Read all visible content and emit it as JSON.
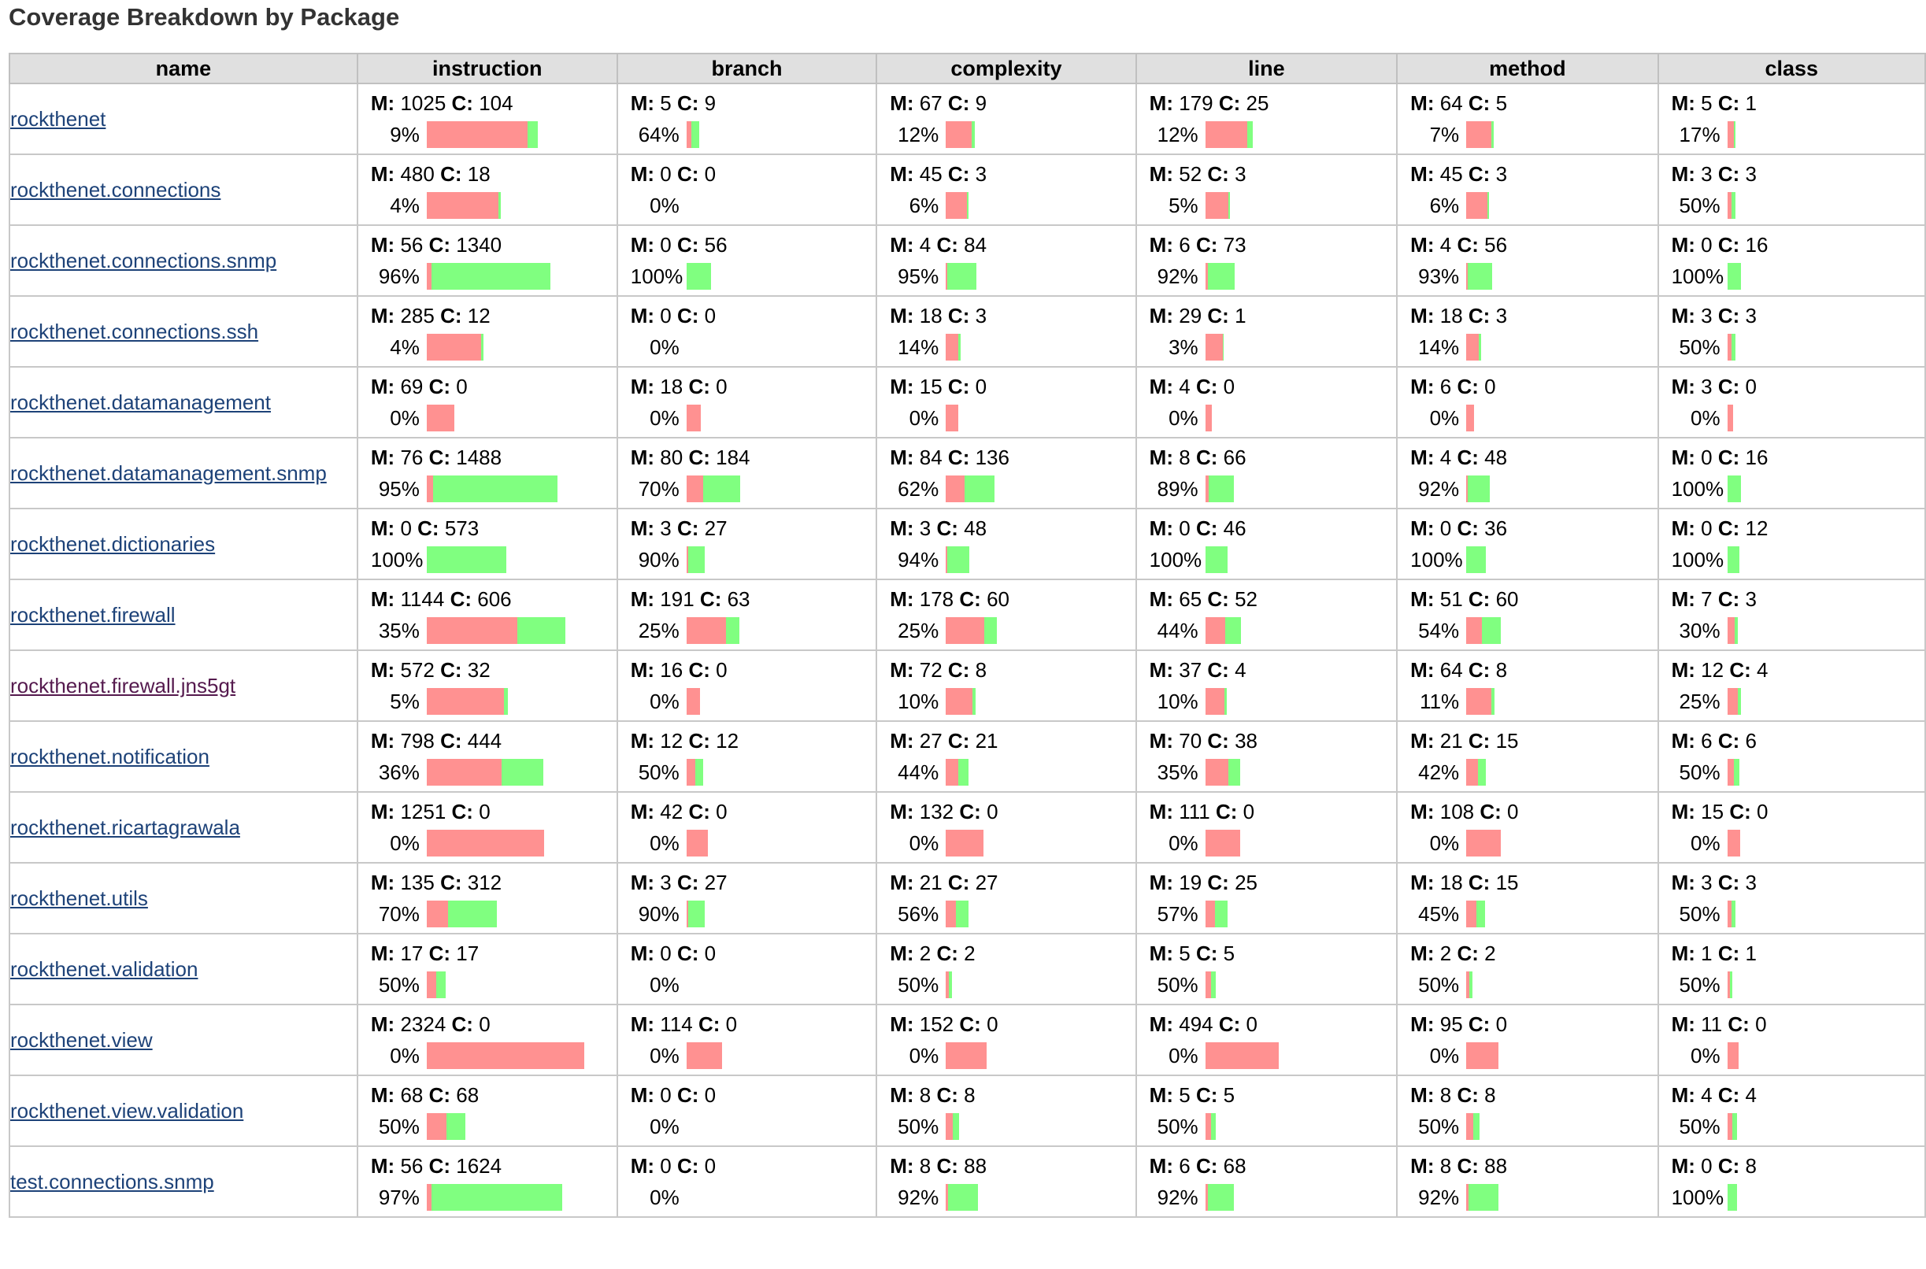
{
  "page": {
    "title": "Coverage Breakdown by Package"
  },
  "labels": {
    "missed": "M:",
    "covered": "C:"
  },
  "colors": {
    "missed_bar": "#ff9191",
    "covered_bar": "#80ff80",
    "link": "#1d4278",
    "visited_link": "#551a4e",
    "header_bg": "#e0e0e0"
  },
  "columns": [
    "name",
    "instruction",
    "branch",
    "complexity",
    "line",
    "method",
    "class"
  ],
  "rows": [
    {
      "name": "rockthenet",
      "cells": [
        {
          "m": "1025",
          "c": "104",
          "pct": "9%"
        },
        {
          "m": "5",
          "c": "9",
          "pct": "64%"
        },
        {
          "m": "67",
          "c": "9",
          "pct": "12%"
        },
        {
          "m": "179",
          "c": "25",
          "pct": "12%"
        },
        {
          "m": "64",
          "c": "5",
          "pct": "7%"
        },
        {
          "m": "5",
          "c": "1",
          "pct": "17%"
        }
      ]
    },
    {
      "name": "rockthenet.connections",
      "cells": [
        {
          "m": "480",
          "c": "18",
          "pct": "4%"
        },
        {
          "m": "0",
          "c": "0",
          "pct": "0%"
        },
        {
          "m": "45",
          "c": "3",
          "pct": "6%"
        },
        {
          "m": "52",
          "c": "3",
          "pct": "5%"
        },
        {
          "m": "45",
          "c": "3",
          "pct": "6%"
        },
        {
          "m": "3",
          "c": "3",
          "pct": "50%"
        }
      ]
    },
    {
      "name": "rockthenet.connections.snmp",
      "cells": [
        {
          "m": "56",
          "c": "1340",
          "pct": "96%"
        },
        {
          "m": "0",
          "c": "56",
          "pct": "100%"
        },
        {
          "m": "4",
          "c": "84",
          "pct": "95%"
        },
        {
          "m": "6",
          "c": "73",
          "pct": "92%"
        },
        {
          "m": "4",
          "c": "56",
          "pct": "93%"
        },
        {
          "m": "0",
          "c": "16",
          "pct": "100%"
        }
      ]
    },
    {
      "name": "rockthenet.connections.ssh",
      "cells": [
        {
          "m": "285",
          "c": "12",
          "pct": "4%"
        },
        {
          "m": "0",
          "c": "0",
          "pct": "0%"
        },
        {
          "m": "18",
          "c": "3",
          "pct": "14%"
        },
        {
          "m": "29",
          "c": "1",
          "pct": "3%"
        },
        {
          "m": "18",
          "c": "3",
          "pct": "14%"
        },
        {
          "m": "3",
          "c": "3",
          "pct": "50%"
        }
      ]
    },
    {
      "name": "rockthenet.datamanagement",
      "cells": [
        {
          "m": "69",
          "c": "0",
          "pct": "0%"
        },
        {
          "m": "18",
          "c": "0",
          "pct": "0%"
        },
        {
          "m": "15",
          "c": "0",
          "pct": "0%"
        },
        {
          "m": "4",
          "c": "0",
          "pct": "0%"
        },
        {
          "m": "6",
          "c": "0",
          "pct": "0%"
        },
        {
          "m": "3",
          "c": "0",
          "pct": "0%"
        }
      ]
    },
    {
      "name": "rockthenet.datamanagement.snmp",
      "cells": [
        {
          "m": "76",
          "c": "1488",
          "pct": "95%"
        },
        {
          "m": "80",
          "c": "184",
          "pct": "70%"
        },
        {
          "m": "84",
          "c": "136",
          "pct": "62%"
        },
        {
          "m": "8",
          "c": "66",
          "pct": "89%"
        },
        {
          "m": "4",
          "c": "48",
          "pct": "92%"
        },
        {
          "m": "0",
          "c": "16",
          "pct": "100%"
        }
      ]
    },
    {
      "name": "rockthenet.dictionaries",
      "cells": [
        {
          "m": "0",
          "c": "573",
          "pct": "100%"
        },
        {
          "m": "3",
          "c": "27",
          "pct": "90%"
        },
        {
          "m": "3",
          "c": "48",
          "pct": "94%"
        },
        {
          "m": "0",
          "c": "46",
          "pct": "100%"
        },
        {
          "m": "0",
          "c": "36",
          "pct": "100%"
        },
        {
          "m": "0",
          "c": "12",
          "pct": "100%"
        }
      ]
    },
    {
      "name": "rockthenet.firewall",
      "cells": [
        {
          "m": "1144",
          "c": "606",
          "pct": "35%"
        },
        {
          "m": "191",
          "c": "63",
          "pct": "25%"
        },
        {
          "m": "178",
          "c": "60",
          "pct": "25%"
        },
        {
          "m": "65",
          "c": "52",
          "pct": "44%"
        },
        {
          "m": "51",
          "c": "60",
          "pct": "54%"
        },
        {
          "m": "7",
          "c": "3",
          "pct": "30%"
        }
      ]
    },
    {
      "name": "rockthenet.firewall.jns5gt",
      "visited": true,
      "cells": [
        {
          "m": "572",
          "c": "32",
          "pct": "5%"
        },
        {
          "m": "16",
          "c": "0",
          "pct": "0%"
        },
        {
          "m": "72",
          "c": "8",
          "pct": "10%"
        },
        {
          "m": "37",
          "c": "4",
          "pct": "10%"
        },
        {
          "m": "64",
          "c": "8",
          "pct": "11%"
        },
        {
          "m": "12",
          "c": "4",
          "pct": "25%"
        }
      ]
    },
    {
      "name": "rockthenet.notification",
      "cells": [
        {
          "m": "798",
          "c": "444",
          "pct": "36%"
        },
        {
          "m": "12",
          "c": "12",
          "pct": "50%"
        },
        {
          "m": "27",
          "c": "21",
          "pct": "44%"
        },
        {
          "m": "70",
          "c": "38",
          "pct": "35%"
        },
        {
          "m": "21",
          "c": "15",
          "pct": "42%"
        },
        {
          "m": "6",
          "c": "6",
          "pct": "50%"
        }
      ]
    },
    {
      "name": "rockthenet.ricartagrawala",
      "cells": [
        {
          "m": "1251",
          "c": "0",
          "pct": "0%"
        },
        {
          "m": "42",
          "c": "0",
          "pct": "0%"
        },
        {
          "m": "132",
          "c": "0",
          "pct": "0%"
        },
        {
          "m": "111",
          "c": "0",
          "pct": "0%"
        },
        {
          "m": "108",
          "c": "0",
          "pct": "0%"
        },
        {
          "m": "15",
          "c": "0",
          "pct": "0%"
        }
      ]
    },
    {
      "name": "rockthenet.utils",
      "cells": [
        {
          "m": "135",
          "c": "312",
          "pct": "70%"
        },
        {
          "m": "3",
          "c": "27",
          "pct": "90%"
        },
        {
          "m": "21",
          "c": "27",
          "pct": "56%"
        },
        {
          "m": "19",
          "c": "25",
          "pct": "57%"
        },
        {
          "m": "18",
          "c": "15",
          "pct": "45%"
        },
        {
          "m": "3",
          "c": "3",
          "pct": "50%"
        }
      ]
    },
    {
      "name": "rockthenet.validation",
      "cells": [
        {
          "m": "17",
          "c": "17",
          "pct": "50%"
        },
        {
          "m": "0",
          "c": "0",
          "pct": "0%"
        },
        {
          "m": "2",
          "c": "2",
          "pct": "50%"
        },
        {
          "m": "5",
          "c": "5",
          "pct": "50%"
        },
        {
          "m": "2",
          "c": "2",
          "pct": "50%"
        },
        {
          "m": "1",
          "c": "1",
          "pct": "50%"
        }
      ]
    },
    {
      "name": "rockthenet.view",
      "cells": [
        {
          "m": "2324",
          "c": "0",
          "pct": "0%"
        },
        {
          "m": "114",
          "c": "0",
          "pct": "0%"
        },
        {
          "m": "152",
          "c": "0",
          "pct": "0%"
        },
        {
          "m": "494",
          "c": "0",
          "pct": "0%"
        },
        {
          "m": "95",
          "c": "0",
          "pct": "0%"
        },
        {
          "m": "11",
          "c": "0",
          "pct": "0%"
        }
      ]
    },
    {
      "name": "rockthenet.view.validation",
      "cells": [
        {
          "m": "68",
          "c": "68",
          "pct": "50%"
        },
        {
          "m": "0",
          "c": "0",
          "pct": "0%"
        },
        {
          "m": "8",
          "c": "8",
          "pct": "50%"
        },
        {
          "m": "5",
          "c": "5",
          "pct": "50%"
        },
        {
          "m": "8",
          "c": "8",
          "pct": "50%"
        },
        {
          "m": "4",
          "c": "4",
          "pct": "50%"
        }
      ]
    },
    {
      "name": "test.connections.snmp",
      "cells": [
        {
          "m": "56",
          "c": "1624",
          "pct": "97%"
        },
        {
          "m": "0",
          "c": "0",
          "pct": "0%"
        },
        {
          "m": "8",
          "c": "88",
          "pct": "92%"
        },
        {
          "m": "6",
          "c": "68",
          "pct": "92%"
        },
        {
          "m": "8",
          "c": "88",
          "pct": "92%"
        },
        {
          "m": "0",
          "c": "8",
          "pct": "100%"
        }
      ]
    }
  ]
}
